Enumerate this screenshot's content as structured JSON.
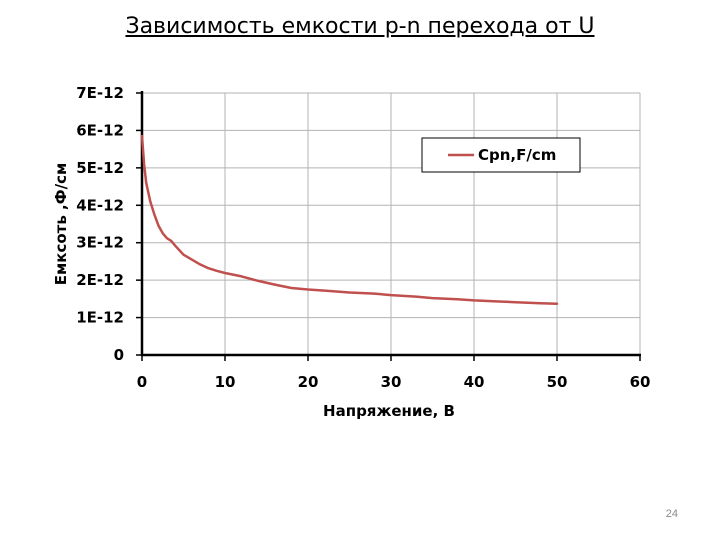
{
  "slide": {
    "title": "Зависимость емкости p-n перехода от U",
    "page_number": "24"
  },
  "chart_data": {
    "type": "line",
    "title": "",
    "xlabel": "Напряжение,  В",
    "ylabel": "Емксоть ,Ф/см",
    "xlim": [
      0,
      60
    ],
    "ylim": [
      0,
      7e-12
    ],
    "x_ticks": [
      0,
      10,
      20,
      30,
      40,
      50,
      60
    ],
    "x_tick_labels": [
      "0",
      "10",
      "20",
      "30",
      "40",
      "50",
      "60"
    ],
    "y_ticks": [
      0,
      1e-12,
      2e-12,
      3e-12,
      4e-12,
      5e-12,
      6e-12,
      7e-12
    ],
    "y_tick_labels": [
      "0",
      "1E-12",
      "2E-12",
      "3E-12",
      "4E-12",
      "5E-12",
      "6E-12",
      "7E-12"
    ],
    "grid": true,
    "legend_position": "top-right",
    "series": [
      {
        "name": "Cpn,F/cm",
        "color": "#c0504d",
        "x": [
          0,
          0.25,
          0.5,
          1,
          1.5,
          2,
          2.5,
          3,
          3.5,
          4,
          5,
          6,
          7,
          8,
          9,
          10,
          12,
          14,
          16,
          18,
          20,
          22,
          25,
          28,
          30,
          33,
          35,
          38,
          40,
          43,
          45,
          48,
          50
        ],
        "y": [
          5.85e-12,
          5.1e-12,
          4.6e-12,
          4.1e-12,
          3.75e-12,
          3.45e-12,
          3.25e-12,
          3.12e-12,
          3.05e-12,
          2.92e-12,
          2.68e-12,
          2.55e-12,
          2.42e-12,
          2.32e-12,
          2.25e-12,
          2.19e-12,
          2.1e-12,
          1.98e-12,
          1.88e-12,
          1.79e-12,
          1.75e-12,
          1.72e-12,
          1.67e-12,
          1.64e-12,
          1.6e-12,
          1.56e-12,
          1.52e-12,
          1.49e-12,
          1.46e-12,
          1.43e-12,
          1.41e-12,
          1.38e-12,
          1.37e-12
        ]
      }
    ]
  }
}
